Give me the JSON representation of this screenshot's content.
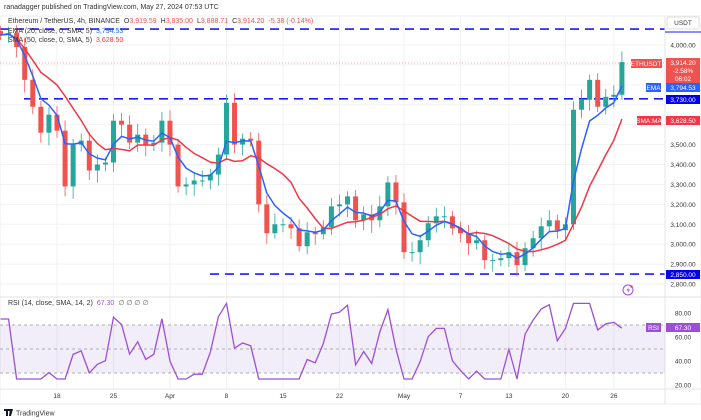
{
  "header": {
    "published": "ranadagger published on TradingView.com, May 27, 2024 07:53 UTC",
    "symbol": "Ethereum / TetherUS, 4h, BINANCE",
    "o_label": "O",
    "o": "3,919.59",
    "h_label": "H",
    "h": "3,935.00",
    "l_label": "L",
    "l": "3,888.71",
    "c_label": "C",
    "c": "3,914.20",
    "change": "-5.38 (-0.14%)",
    "ema_legend": "EMA (20, close, 0, SMA, 5)",
    "ema_value": "3,794.53",
    "sma_legend": "SMA (50, close, 0, SMA, 5)",
    "sma_value": "3,628.50",
    "rsi_legend": "RSI (14, close, SMA, 14, 2)",
    "rsi_value": "67.30"
  },
  "price_axis": {
    "currency": "USDT",
    "ticks": [
      "4,000.00",
      "3,500.00",
      "3,400.00",
      "3,300.00",
      "3,200.00",
      "3,100.00",
      "3,000.00",
      "2,900.00",
      "2,800.00"
    ],
    "last_tag": "ETHUSDT",
    "last_price": "3,914.20",
    "last_change": "-2.58%",
    "countdown": "06:02",
    "ema_tag": "EMA",
    "ema_price": "3,794.53",
    "level_1": "3,730.00",
    "level_2": "2,850.00",
    "sma_tag": "SMA:MA",
    "sma_price": "3,628.50",
    "rsi_tag": "RSI",
    "rsi_price": "67.30",
    "rsi_ticks": [
      "80.00",
      "60.00",
      "40.00",
      "20.00"
    ]
  },
  "time_axis": [
    "18",
    "25",
    "Apr",
    "8",
    "15",
    "22",
    "May",
    "7",
    "13",
    "20",
    "26"
  ],
  "footer": {
    "logo": "TradingView"
  },
  "colors": {
    "up": "#26a69a",
    "down": "#ef5350",
    "ema": "#2962ff",
    "sma": "#f23645",
    "level": "#1a1aff",
    "rsi": "#9c4fd6"
  },
  "chart_data": {
    "type": "candlestick",
    "title": "Ethereum / TetherUS, 4h, BINANCE",
    "x_start": "2024-03-11",
    "x_step": "1 day (approx.)",
    "close": [
      4050,
      4060,
      3990,
      3825,
      3690,
      3560,
      3650,
      3570,
      3290,
      3500,
      3520,
      3370,
      3400,
      3410,
      3620,
      3600,
      3510,
      3550,
      3500,
      3510,
      3620,
      3500,
      3290,
      3300,
      3320,
      3320,
      3350,
      3450,
      3710,
      3500,
      3530,
      3520,
      3200,
      3055,
      3100,
      3100,
      3080,
      2990,
      3060,
      3050,
      3085,
      3190,
      3200,
      3240,
      3120,
      3150,
      3120,
      3190,
      3310,
      3210,
      2960,
      2960,
      3020,
      3105,
      3140,
      3140,
      3080,
      3055,
      3005,
      3020,
      2920,
      2920,
      2930,
      2960,
      2895,
      2980,
      3030,
      3090,
      3120,
      3070,
      3100,
      3675,
      3725,
      3825,
      3690,
      3740,
      3750,
      3914.2
    ],
    "ema_last": 3794.53,
    "sma_last": 3628.5,
    "rsi_last": 67.3,
    "horizontal_levels": [
      4080,
      3730,
      2850
    ],
    "ylim": [
      2780,
      4130
    ],
    "rsi_levels": [
      70,
      50,
      30
    ],
    "rsi_ylim": [
      20,
      90
    ]
  }
}
